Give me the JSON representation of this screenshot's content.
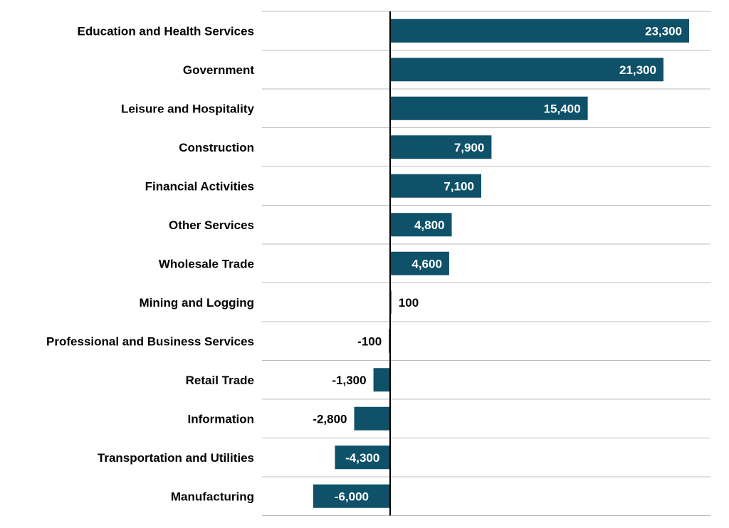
{
  "chart_data": {
    "type": "bar",
    "orientation": "horizontal",
    "categories": [
      "Education and Health Services",
      "Government",
      "Leisure and Hospitality",
      "Construction",
      "Financial Activities",
      "Other Services",
      "Wholesale Trade",
      "Mining and Logging",
      "Professional and Business Services",
      "Retail Trade",
      "Information",
      "Transportation and Utilities",
      "Manufacturing"
    ],
    "values": [
      23300,
      21300,
      15400,
      7900,
      7100,
      4800,
      4600,
      100,
      -100,
      -1300,
      -2800,
      -4300,
      -6000
    ],
    "value_labels": [
      "23,300",
      "21,300",
      "15,400",
      "7,900",
      "7,100",
      "4,800",
      "4,600",
      "100",
      "-100",
      "-1,300",
      "-2,800",
      "-4,300",
      "-6,000"
    ],
    "title": "",
    "xlabel": "",
    "ylabel": "",
    "xlim": [
      -10000,
      25000
    ],
    "grid": "horizontal separators",
    "legend": "none",
    "bar_color": "#0e5168"
  }
}
